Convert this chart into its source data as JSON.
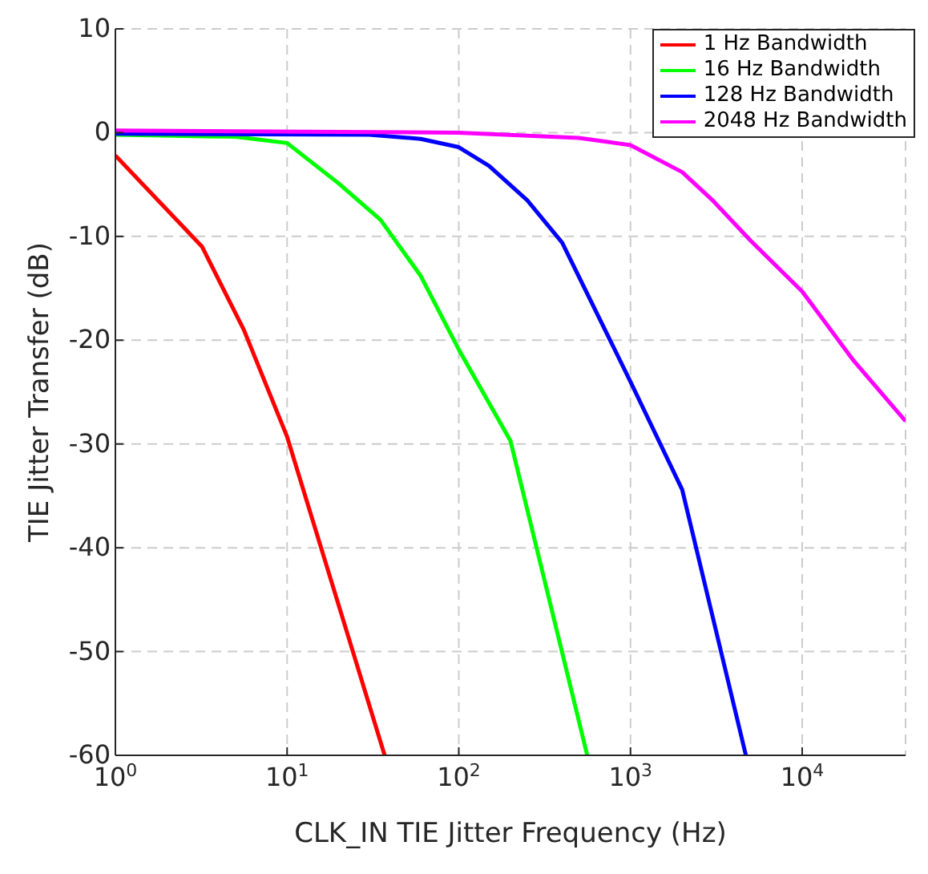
{
  "chart_data": {
    "type": "line",
    "xlabel": "CLK_IN TIE Jitter Frequency (Hz)",
    "ylabel": "TIE Jitter Transfer (dB)",
    "log": "x",
    "grid": true,
    "legend": "top right",
    "xlim": [
      1,
      40000
    ],
    "ylim": [
      -60,
      10
    ],
    "xticks": [
      {
        "value": 1,
        "label": "10$^{0}$"
      },
      {
        "value": 10,
        "label": "10$^{1}$"
      },
      {
        "value": 100,
        "label": "10$^{2}$"
      },
      {
        "value": 1000,
        "label": "10$^{3}$"
      },
      {
        "value": 10000,
        "label": "10$^{4}$"
      }
    ],
    "yticks": [
      -60,
      -50,
      -40,
      -30,
      -20,
      -10,
      0,
      10
    ],
    "series": [
      {
        "name": "1 Hz Bandwidth",
        "color": "#ff0000",
        "x": [
          1,
          3.2,
          5.6,
          10,
          37
        ],
        "values": [
          -2.2,
          -11,
          -19,
          -29.3,
          -60
        ]
      },
      {
        "name": "16 Hz Bandwidth",
        "color": "#00ff00",
        "x": [
          1,
          5,
          10,
          20,
          35,
          60,
          100,
          200,
          560
        ],
        "values": [
          -0.2,
          -0.4,
          -1,
          -4.9,
          -8.4,
          -13.8,
          -20.9,
          -29.7,
          -60
        ]
      },
      {
        "name": "128 Hz Bandwidth",
        "color": "#0000ff",
        "x": [
          1,
          30,
          60,
          100,
          150,
          250,
          400,
          1000,
          2000,
          4700
        ],
        "values": [
          -0.1,
          -0.2,
          -0.6,
          -1.4,
          -3.2,
          -6.5,
          -10.6,
          -24,
          -34.4,
          -60
        ]
      },
      {
        "name": "2048 Hz Bandwidth",
        "color": "#ff00ff",
        "x": [
          1,
          100,
          500,
          1000,
          2000,
          3000,
          5000,
          10000,
          20000,
          40000
        ],
        "values": [
          0.2,
          0,
          -0.5,
          -1.2,
          -3.8,
          -6.5,
          -10.4,
          -15.3,
          -22,
          -27.8
        ]
      }
    ]
  }
}
